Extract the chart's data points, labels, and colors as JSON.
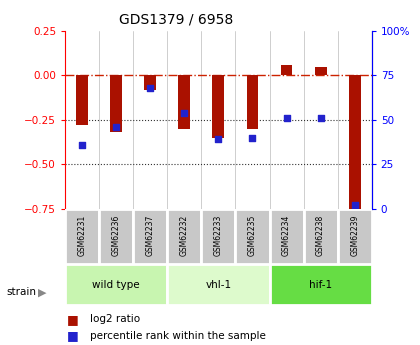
{
  "title": "GDS1379 / 6958",
  "samples": [
    "GSM62231",
    "GSM62236",
    "GSM62237",
    "GSM62232",
    "GSM62233",
    "GSM62235",
    "GSM62234",
    "GSM62238",
    "GSM62239"
  ],
  "log2_ratio": [
    -0.28,
    -0.32,
    -0.08,
    -0.3,
    -0.35,
    -0.3,
    0.06,
    0.05,
    -0.8
  ],
  "percentile_rank": [
    36,
    46,
    68,
    54,
    39,
    40,
    51,
    51,
    2
  ],
  "groups": [
    {
      "label": "wild type",
      "start": 0,
      "end": 3,
      "color": "#c8f5b0"
    },
    {
      "label": "vhl-1",
      "start": 3,
      "end": 6,
      "color": "#ddfacc"
    },
    {
      "label": "hif-1",
      "start": 6,
      "end": 9,
      "color": "#66dd44"
    }
  ],
  "ylim_left": [
    -0.75,
    0.25
  ],
  "ylim_right": [
    0,
    100
  ],
  "right_ticks": [
    0,
    25,
    50,
    75,
    100
  ],
  "right_tick_labels": [
    "0",
    "25",
    "50",
    "75",
    "100%"
  ],
  "left_ticks": [
    -0.75,
    -0.5,
    -0.25,
    0,
    0.25
  ],
  "bar_color": "#aa1100",
  "dot_color": "#2222cc",
  "hline_color": "#cc2200",
  "dotline_color": "#333333",
  "label_bg": "#c8c8c8",
  "label_border": "#ffffff"
}
